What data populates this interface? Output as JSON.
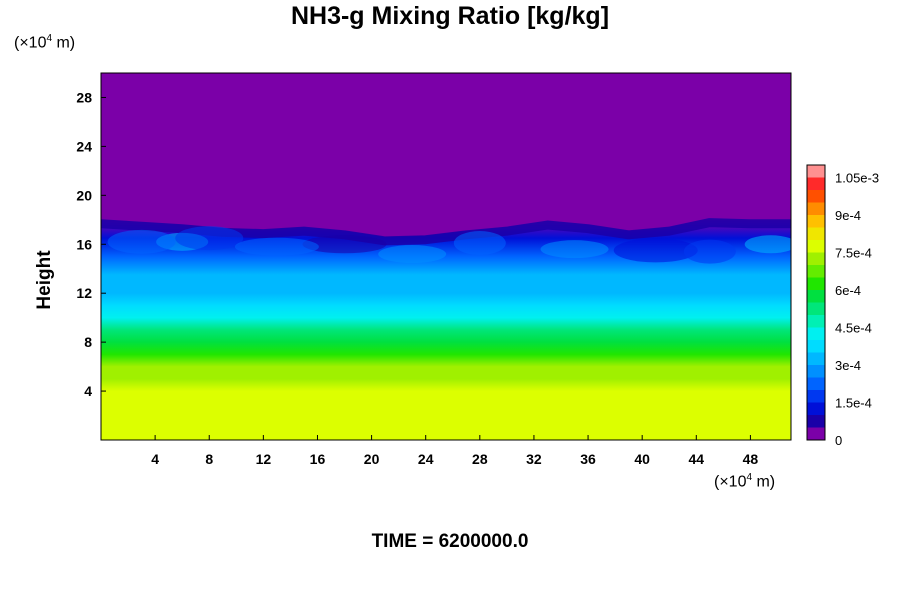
{
  "chart_data": {
    "type": "heatmap",
    "title": "NH3-g Mixing Ratio [kg/kg]",
    "ylabel": "Height",
    "x_unit": "(×10⁴ m)",
    "y_unit": "(×10⁴ m)",
    "x_unit_prefix": "(×10",
    "x_unit_exp": "4",
    "x_unit_suffix": " m)",
    "y_unit_prefix": "(×10",
    "y_unit_exp": "4",
    "y_unit_suffix": " m)",
    "xlim": [
      0,
      51
    ],
    "ylim": [
      0,
      30
    ],
    "x_ticks": [
      4,
      8,
      12,
      16,
      20,
      24,
      28,
      32,
      36,
      40,
      44,
      48
    ],
    "y_ticks": [
      4,
      8,
      12,
      16,
      20,
      24,
      28
    ],
    "colorbar": {
      "min": 0,
      "max": 0.0011,
      "levels": 22,
      "tick_labels": [
        "0",
        "1.5e-4",
        "3e-4",
        "4.5e-4",
        "6e-4",
        "7.5e-4",
        "9e-4",
        "1.05e-3"
      ],
      "tick_values": [
        0,
        0.00015,
        0.0003,
        0.00045,
        0.0006,
        0.00075,
        0.0009,
        0.00105
      ]
    },
    "vertical_profile": [
      {
        "height": 0,
        "value": 0.00077
      },
      {
        "height": 4,
        "value": 0.00077
      },
      {
        "height": 5,
        "value": 0.00074
      },
      {
        "height": 6,
        "value": 0.00071
      },
      {
        "height": 7,
        "value": 0.00065
      },
      {
        "height": 8,
        "value": 0.00058
      },
      {
        "height": 9,
        "value": 0.0005
      },
      {
        "height": 10,
        "value": 0.00042
      },
      {
        "height": 11,
        "value": 0.00036
      },
      {
        "height": 12,
        "value": 0.00033
      },
      {
        "height": 13.5,
        "value": 0.0003
      },
      {
        "height": 15,
        "value": 0.00024
      },
      {
        "height": 16.5,
        "value": 0.00013
      },
      {
        "height": 18,
        "value": 0.0
      }
    ],
    "cloud_top_height": [
      {
        "x": 0,
        "y": 18.0
      },
      {
        "x": 3,
        "y": 17.8
      },
      {
        "x": 6,
        "y": 17.6
      },
      {
        "x": 9,
        "y": 17.3
      },
      {
        "x": 12,
        "y": 17.2
      },
      {
        "x": 15,
        "y": 17.4
      },
      {
        "x": 18,
        "y": 17.1
      },
      {
        "x": 21,
        "y": 16.6
      },
      {
        "x": 24,
        "y": 16.7
      },
      {
        "x": 27,
        "y": 17.1
      },
      {
        "x": 30,
        "y": 17.4
      },
      {
        "x": 33,
        "y": 17.9
      },
      {
        "x": 36,
        "y": 17.6
      },
      {
        "x": 39,
        "y": 17.1
      },
      {
        "x": 42,
        "y": 17.4
      },
      {
        "x": 45,
        "y": 18.1
      },
      {
        "x": 48,
        "y": 18.0
      },
      {
        "x": 51,
        "y": 18.0
      }
    ],
    "time_label": "TIME = 6200000.0"
  }
}
